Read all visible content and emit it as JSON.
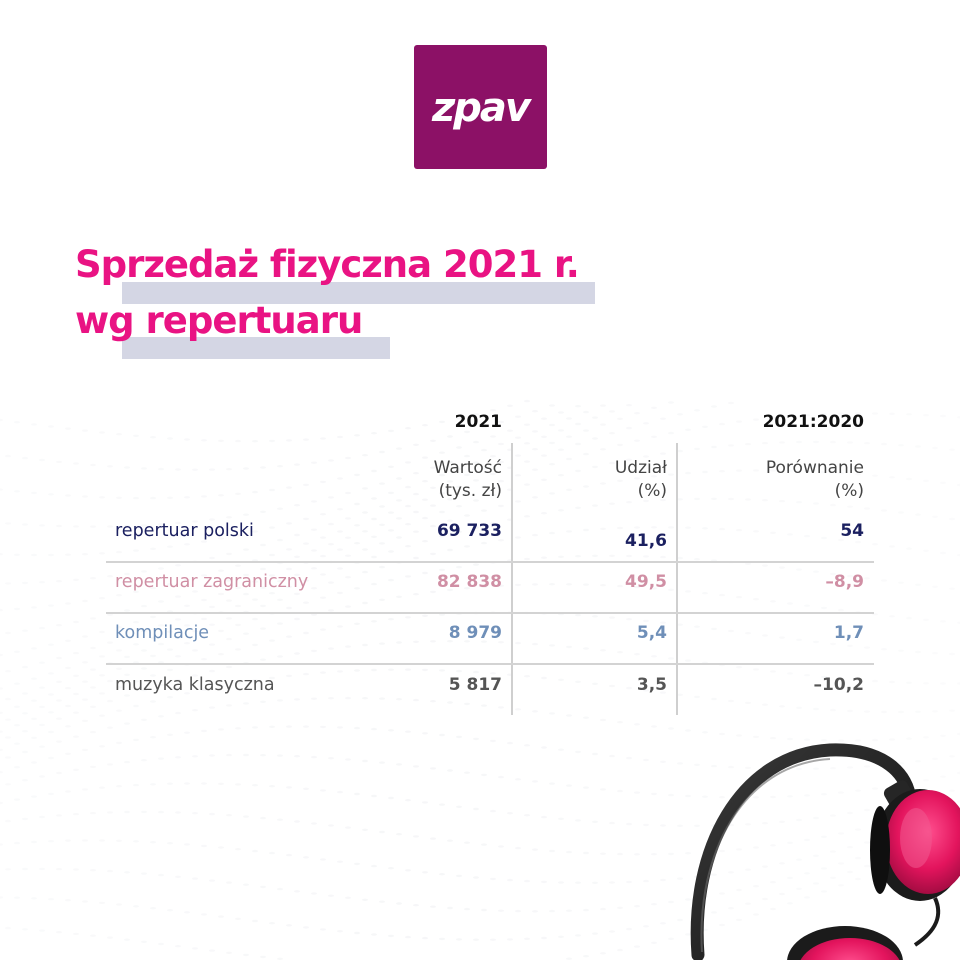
{
  "logo": {
    "text": "zpav",
    "color": "#8c1166"
  },
  "title": {
    "line1": "Sprzedaż fizyczna 2021 r.",
    "line2": "wg repertuaru",
    "color": "#e91383"
  },
  "chart_data": {
    "type": "table",
    "group_headers": [
      "2021",
      "2021:2020"
    ],
    "columns": [
      {
        "line1": "Wartość",
        "line2": "(tys. zł)"
      },
      {
        "line1": "Udział",
        "line2": "(%)"
      },
      {
        "line1": "Porównanie",
        "line2": "(%)"
      }
    ],
    "rows": [
      {
        "label": "repertuar polski",
        "color": "#1b2060",
        "values": [
          "69 733",
          "41,6",
          "54"
        ]
      },
      {
        "label": "repertuar zagraniczny",
        "color": "#d08fa4",
        "values": [
          "82 838",
          "49,5",
          "–8,9"
        ]
      },
      {
        "label": "kompilacje",
        "color": "#6f8fb8",
        "values": [
          "8 979",
          "5,4",
          "1,7"
        ]
      },
      {
        "label": "muzyka klasyczna",
        "color": "#555555",
        "values": [
          "5 817",
          "3,5",
          "–10,2"
        ]
      }
    ]
  },
  "decor": {
    "headphones": "headphones-icon",
    "background": "dotted-wave-pattern"
  }
}
